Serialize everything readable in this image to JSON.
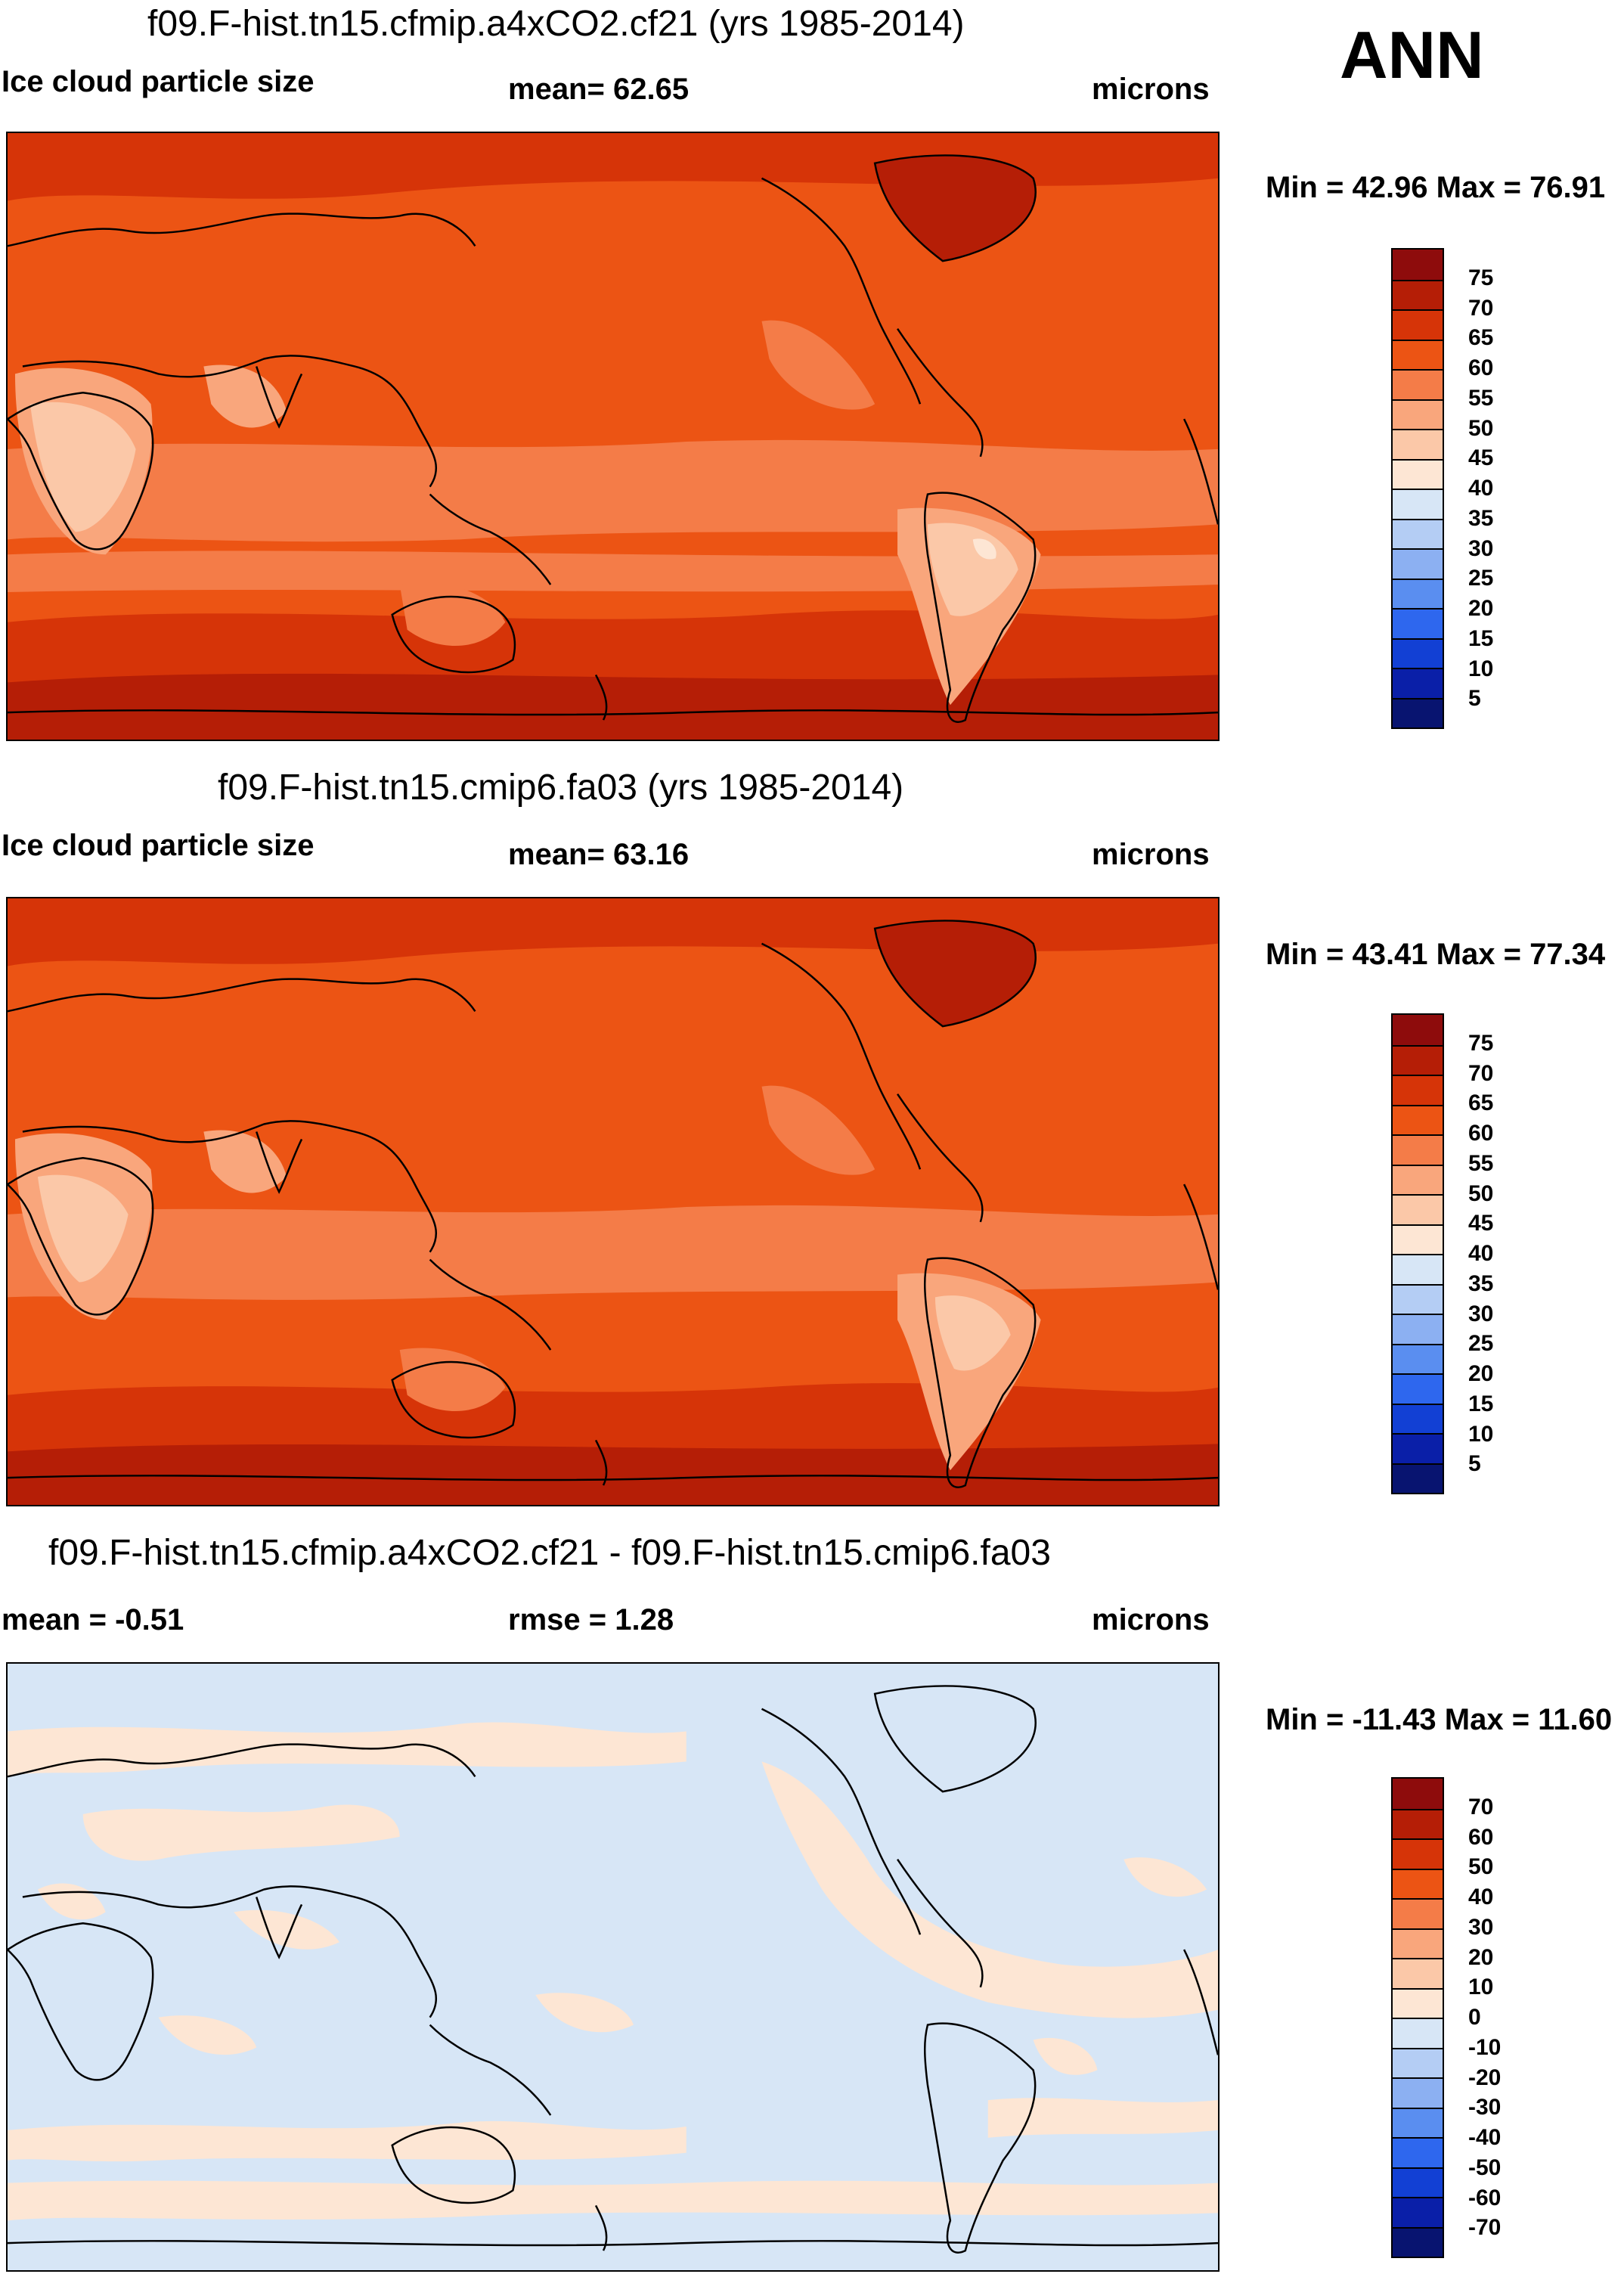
{
  "season": "ANN",
  "panels": [
    {
      "title": "f09.F-hist.tn15.cfmip.a4xCO2.cf21 (yrs 1985-2014)",
      "left_label": "Ice cloud particle size",
      "center_label": "mean=  62.65",
      "units": "microns",
      "minmax": "Min =  42.96 Max =  76.91",
      "colorbar_labels": [
        "75",
        "70",
        "65",
        "60",
        "55",
        "50",
        "45",
        "40",
        "35",
        "30",
        "25",
        "20",
        "15",
        "10",
        "5"
      ],
      "colorbar_colors": [
        "#8e0c0c",
        "#b51e06",
        "#d63408",
        "#ec5414",
        "#f47c48",
        "#f9a67c",
        "#fbc8a8",
        "#fde6d4",
        "#d7e6f6",
        "#b4cdf4",
        "#8cb0f2",
        "#5a8ef0",
        "#2e67ee",
        "#1240d4",
        "#0a1fa8",
        "#081470"
      ]
    },
    {
      "title": "f09.F-hist.tn15.cmip6.fa03 (yrs 1985-2014)",
      "left_label": "Ice cloud particle size",
      "center_label": "mean=  63.16",
      "units": "microns",
      "minmax": "Min =  43.41 Max =  77.34",
      "colorbar_labels": [
        "75",
        "70",
        "65",
        "60",
        "55",
        "50",
        "45",
        "40",
        "35",
        "30",
        "25",
        "20",
        "15",
        "10",
        "5"
      ],
      "colorbar_colors": [
        "#8e0c0c",
        "#b51e06",
        "#d63408",
        "#ec5414",
        "#f47c48",
        "#f9a67c",
        "#fbc8a8",
        "#fde6d4",
        "#d7e6f6",
        "#b4cdf4",
        "#8cb0f2",
        "#5a8ef0",
        "#2e67ee",
        "#1240d4",
        "#0a1fa8",
        "#081470"
      ]
    },
    {
      "title": "f09.F-hist.tn15.cfmip.a4xCO2.cf21 - f09.F-hist.tn15.cmip6.fa03",
      "left_label": "mean =  -0.51",
      "center_label": "rmse =   1.28",
      "units": "microns",
      "minmax": "Min = -11.43 Max =  11.60",
      "colorbar_labels": [
        "70",
        "60",
        "50",
        "40",
        "30",
        "20",
        "10",
        "0",
        "-10",
        "-20",
        "-30",
        "-40",
        "-50",
        "-60",
        "-70"
      ],
      "colorbar_colors": [
        "#8e0c0c",
        "#b51e06",
        "#d63408",
        "#ec5414",
        "#f47c48",
        "#f9a67c",
        "#fbc8a8",
        "#fde6d4",
        "#d7e6f6",
        "#b4cdf4",
        "#8cb0f2",
        "#5a8ef0",
        "#2e67ee",
        "#1240d4",
        "#0a1fa8",
        "#081470"
      ]
    }
  ],
  "map_colors": {
    "base_orange": "#ec5414",
    "dark_red": "#d63408",
    "deep_red": "#b51e06",
    "salmon": "#f47c48",
    "light_salmon": "#f9a67c",
    "peach": "#fbc8a8",
    "cream": "#fde6d4",
    "diff_blue": "#d7e6f6",
    "diff_cream": "#fde6d4",
    "coast": "#000000"
  }
}
